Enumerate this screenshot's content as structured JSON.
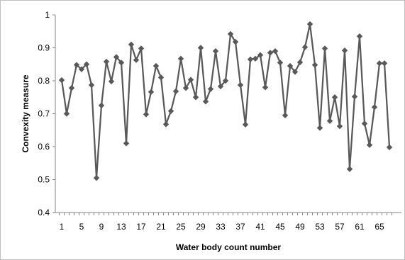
{
  "chart_data": {
    "type": "line",
    "title": "",
    "xlabel": "Water body count number",
    "ylabel": "Convexity measure",
    "ylim": [
      0.4,
      1.0
    ],
    "xlim": [
      1,
      67
    ],
    "y_ticks": [
      "0.4",
      "0.5",
      "0.6",
      "0.7",
      "0.8",
      "0.9",
      "1"
    ],
    "x_ticks": [
      "1",
      "5",
      "9",
      "13",
      "17",
      "21",
      "25",
      "29",
      "33",
      "37",
      "41",
      "45",
      "49",
      "53",
      "57",
      "61",
      "65"
    ],
    "grid": false,
    "legend": "none",
    "marker": "diamond",
    "series": [
      {
        "color": "#595959",
        "x": [
          1,
          2,
          3,
          4,
          5,
          6,
          7,
          8,
          9,
          10,
          11,
          12,
          13,
          14,
          15,
          16,
          17,
          18,
          19,
          20,
          21,
          22,
          23,
          24,
          25,
          26,
          27,
          28,
          29,
          30,
          31,
          32,
          33,
          34,
          35,
          36,
          37,
          38,
          39,
          40,
          41,
          42,
          43,
          44,
          45,
          46,
          47,
          48,
          49,
          50,
          51,
          52,
          53,
          54,
          55,
          56,
          57,
          58,
          59,
          60,
          61,
          62,
          63,
          64,
          65,
          66,
          67
        ],
        "values": [
          0.802,
          0.7,
          0.778,
          0.848,
          0.835,
          0.85,
          0.787,
          0.505,
          0.725,
          0.858,
          0.798,
          0.872,
          0.855,
          0.61,
          0.91,
          0.863,
          0.898,
          0.698,
          0.766,
          0.845,
          0.81,
          0.668,
          0.708,
          0.768,
          0.867,
          0.778,
          0.803,
          0.75,
          0.9,
          0.737,
          0.775,
          0.89,
          0.783,
          0.8,
          0.942,
          0.918,
          0.787,
          0.667,
          0.865,
          0.867,
          0.878,
          0.78,
          0.885,
          0.89,
          0.855,
          0.695,
          0.845,
          0.827,
          0.856,
          0.902,
          0.972,
          0.848,
          0.657,
          0.898,
          0.678,
          0.75,
          0.662,
          0.892,
          0.532,
          0.752,
          0.935,
          0.67,
          0.605,
          0.72,
          0.853,
          0.853,
          0.598
        ]
      }
    ]
  }
}
